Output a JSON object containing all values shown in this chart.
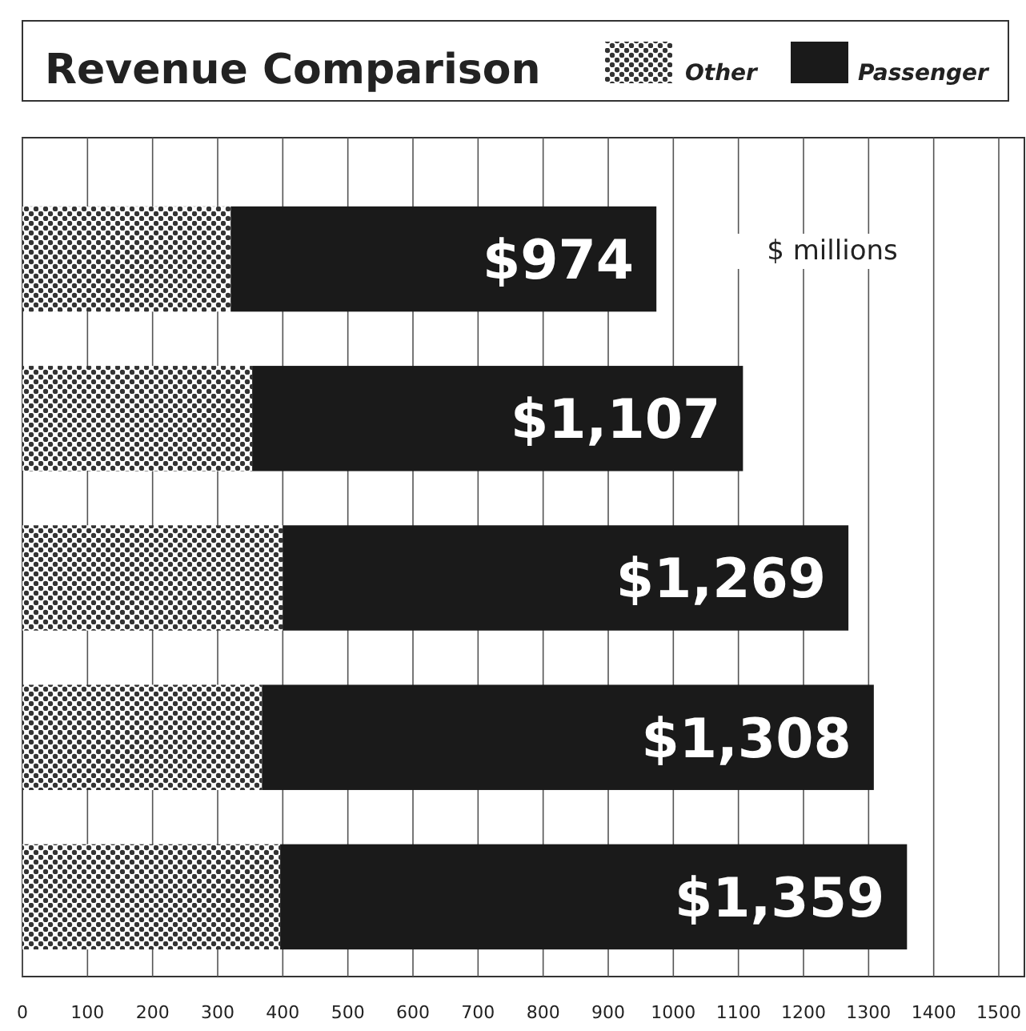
{
  "chart_data": {
    "type": "bar",
    "title": "Revenue Comparison",
    "orientation": "horizontal",
    "stacked": true,
    "categories": [
      null,
      null,
      null,
      null,
      null
    ],
    "series": [
      {
        "name": "Other",
        "color": "#333333",
        "values": [
          320,
          353,
          400,
          368,
          396
        ]
      },
      {
        "name": "Passenger",
        "color": "#1a1a1a",
        "values": [
          654,
          754,
          869,
          940,
          963
        ]
      }
    ],
    "totals": [
      "$974",
      "$1,107",
      "$1,269",
      "$1,308",
      "$1,359"
    ],
    "annotations": [
      "$ millions"
    ],
    "xlim": [
      0,
      1500
    ],
    "xticks": [
      0,
      100,
      200,
      300,
      400,
      500,
      600,
      700,
      800,
      900,
      1000,
      1100,
      1200,
      1300,
      1400,
      1500
    ],
    "grid": "x",
    "legend": "top right"
  }
}
